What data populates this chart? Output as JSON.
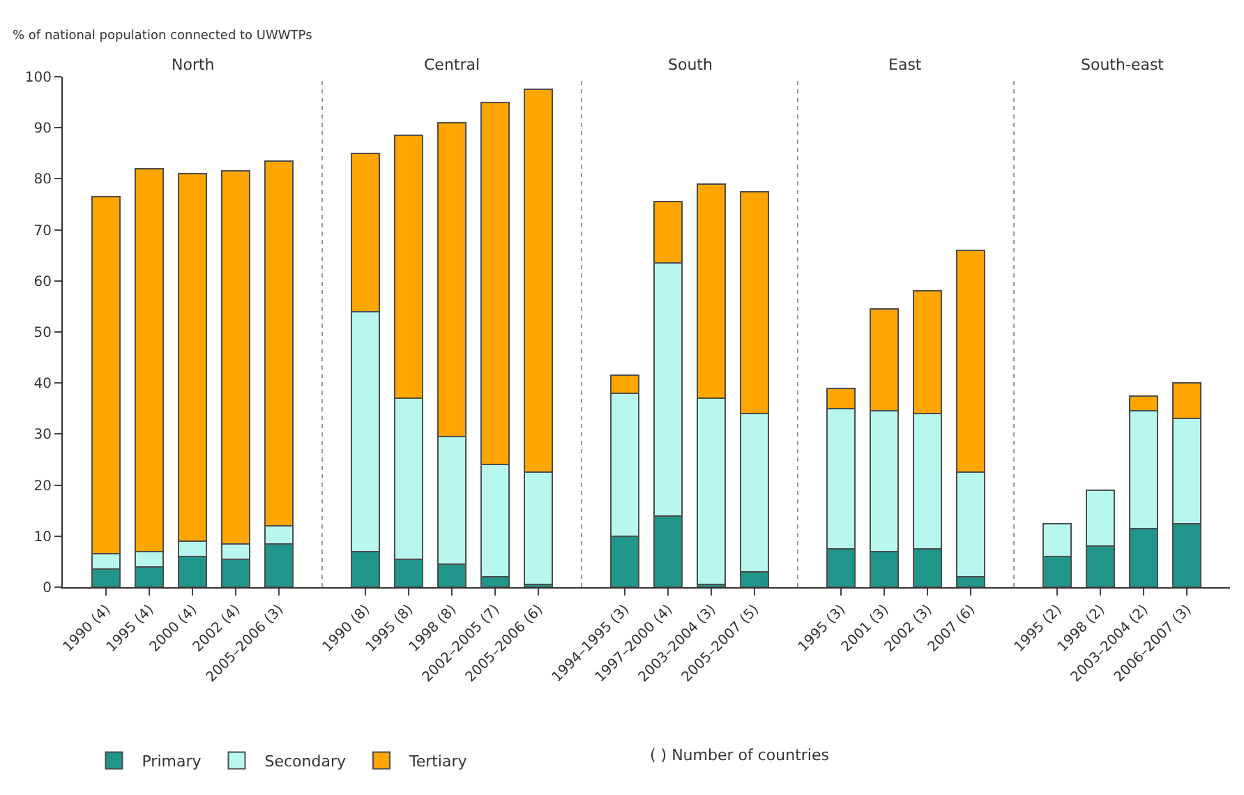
{
  "chart_data": [
    {
      "type": "bar",
      "title": "North",
      "ylabel": "% of national population connected to UWWTPs",
      "stacked": true,
      "categories": [
        "1990 (4)",
        "1995 (4)",
        "2000 (4)",
        "2002 (4)",
        "2005–2006 (3)"
      ],
      "series": [
        {
          "name": "Primary",
          "color": "#20968a",
          "values": [
            3.5,
            4,
            6,
            5.5,
            8.5
          ]
        },
        {
          "name": "Secondary",
          "color": "#b8f7ee",
          "values": [
            3,
            3,
            3,
            3,
            3.5
          ]
        },
        {
          "name": "Tertiary",
          "color": "#ffa500",
          "values": [
            70,
            75,
            72,
            73,
            71.5
          ]
        }
      ],
      "ylim": [
        0,
        100
      ],
      "yticks": [
        0,
        10,
        20,
        30,
        40,
        50,
        60,
        70,
        80,
        90,
        100
      ],
      "legend": "bottom",
      "annotations": [
        "( ) Number of countries"
      ]
    },
    {
      "type": "bar",
      "title": "Central",
      "stacked": true,
      "categories": [
        "1990 (8)",
        "1995 (8)",
        "1998 (8)",
        "2002–2005 (7)",
        "2005–2006 (6)"
      ],
      "series": [
        {
          "color": "#20968a",
          "values": [
            7,
            5.5,
            4.5,
            2,
            0.5
          ]
        },
        {
          "color": "#b8f7ee",
          "values": [
            47,
            31.5,
            25,
            22,
            22
          ]
        },
        {
          "color": "#ffa500",
          "values": [
            31,
            51.5,
            61.5,
            71,
            75
          ]
        }
      ],
      "ylim": [
        0,
        100
      ],
      "yticks": [
        0,
        10,
        20,
        30,
        40,
        50,
        60,
        70,
        80,
        90,
        100
      ],
      "tick_labels": "x"
    },
    {
      "type": "bar",
      "title": "South",
      "stacked": true,
      "categories": [
        "1994–1995 (3)",
        "1997–2000 (4)",
        "2003–2004 (3)",
        "2005–2007 (5)"
      ],
      "series": [
        {
          "color": "#20968a",
          "values": [
            10,
            14,
            0.5,
            3
          ]
        },
        {
          "color": "#b8f7ee",
          "values": [
            28,
            49.5,
            36.5,
            31
          ]
        },
        {
          "color": "#ffa500",
          "values": [
            3.5,
            12,
            42,
            43.5
          ]
        }
      ],
      "ylim": [
        0,
        100
      ],
      "yticks": [
        0,
        10,
        20,
        30,
        40,
        50,
        60,
        70,
        80,
        90,
        100
      ],
      "tick_labels": "x"
    },
    {
      "type": "bar",
      "title": "East",
      "stacked": true,
      "categories": [
        "1995 (3)",
        "2001 (3)",
        "2002 (3)",
        "2007 (6)"
      ],
      "series": [
        {
          "color": "#20968a",
          "values": [
            7.5,
            7,
            7.5,
            2
          ]
        },
        {
          "color": "#b8f7ee",
          "values": [
            27.5,
            27.5,
            26.5,
            20.5
          ]
        },
        {
          "color": "#ffa500",
          "values": [
            4,
            20,
            24,
            43.5
          ]
        }
      ],
      "ylim": [
        0,
        100
      ],
      "yticks": [
        0,
        10,
        20,
        30,
        40,
        50,
        60,
        70,
        80,
        90,
        100
      ],
      "tick_labels": "x"
    },
    {
      "type": "bar",
      "title": "South-east",
      "stacked": true,
      "categories": [
        "1995 (2)",
        "1998 (2)",
        "2003–2004 (2)",
        "2006–2007 (3)"
      ],
      "series": [
        {
          "color": "#20968a",
          "values": [
            6,
            8,
            11.5,
            12.5
          ]
        },
        {
          "color": "#b8f7ee",
          "values": [
            6.5,
            11,
            23,
            20.5
          ]
        },
        {
          "color": "#ffa500",
          "values": [
            null,
            null,
            3,
            7
          ]
        }
      ],
      "ylim": [
        0,
        100
      ],
      "yticks": [
        0,
        10,
        20,
        30,
        40,
        50,
        60,
        70,
        80,
        90,
        100
      ],
      "tick_labels": "x"
    }
  ]
}
